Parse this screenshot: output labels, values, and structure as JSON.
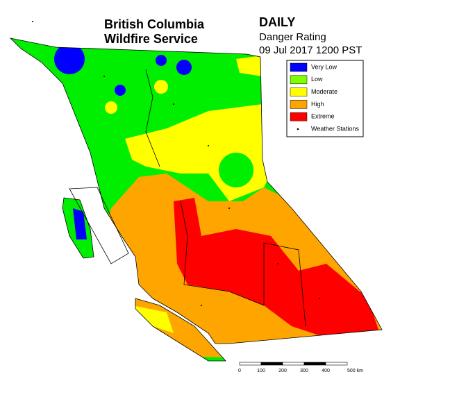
{
  "header": {
    "agency_line1": "British Columbia",
    "agency_line2": "Wildfire Service",
    "product": "DAILY",
    "subtitle": "Danger Rating",
    "timestamp": "09 Jul 2017 1200 PST"
  },
  "legend": {
    "items": [
      {
        "label": "Very Low",
        "color": "#0000ff"
      },
      {
        "label": "Low",
        "color": "#7fff00"
      },
      {
        "label": "Moderate",
        "color": "#ffff00"
      },
      {
        "label": "High",
        "color": "#ffa500"
      },
      {
        "label": "Extreme",
        "color": "#ff0000"
      }
    ],
    "stations_label": "Weather Stations"
  },
  "scale_bar": {
    "labels": [
      "0",
      "100",
      "200",
      "300",
      "400",
      "500 km"
    ]
  }
}
